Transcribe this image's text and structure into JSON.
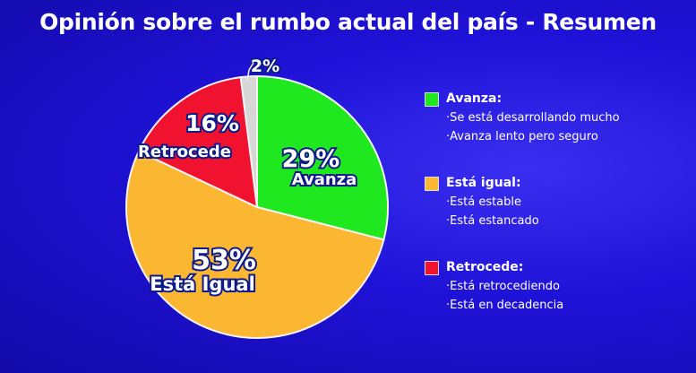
{
  "chart_data": {
    "type": "pie",
    "title": "Opinión sobre el rumbo actual del país - Resumen",
    "start": "top-clockwise",
    "slices": [
      {
        "label": "Avanza",
        "value": 29,
        "value_label": "29%",
        "color": "#1fe81f"
      },
      {
        "label": "Está Igual",
        "value": 53,
        "value_label": "53%",
        "color": "#fbb731"
      },
      {
        "label": "Retrocede",
        "value": 16,
        "value_label": "16%",
        "color": "#f0122e"
      },
      {
        "label": "",
        "value": 2,
        "value_label": "2%",
        "color": "#d6d6d6"
      }
    ],
    "legend_placement": "right"
  },
  "legend": [
    {
      "title": "Avanza:",
      "color": "#1fe81f",
      "items": [
        "·Se está desarrollando mucho",
        "·Avanza lento pero seguro"
      ]
    },
    {
      "title": "Está igual:",
      "color": "#fbb731",
      "items": [
        "·Está estable",
        "·Está estancado"
      ]
    },
    {
      "title": "Retrocede:",
      "color": "#f0122e",
      "items": [
        "·Está retrocediendo",
        "·Está en decadencia"
      ]
    }
  ]
}
